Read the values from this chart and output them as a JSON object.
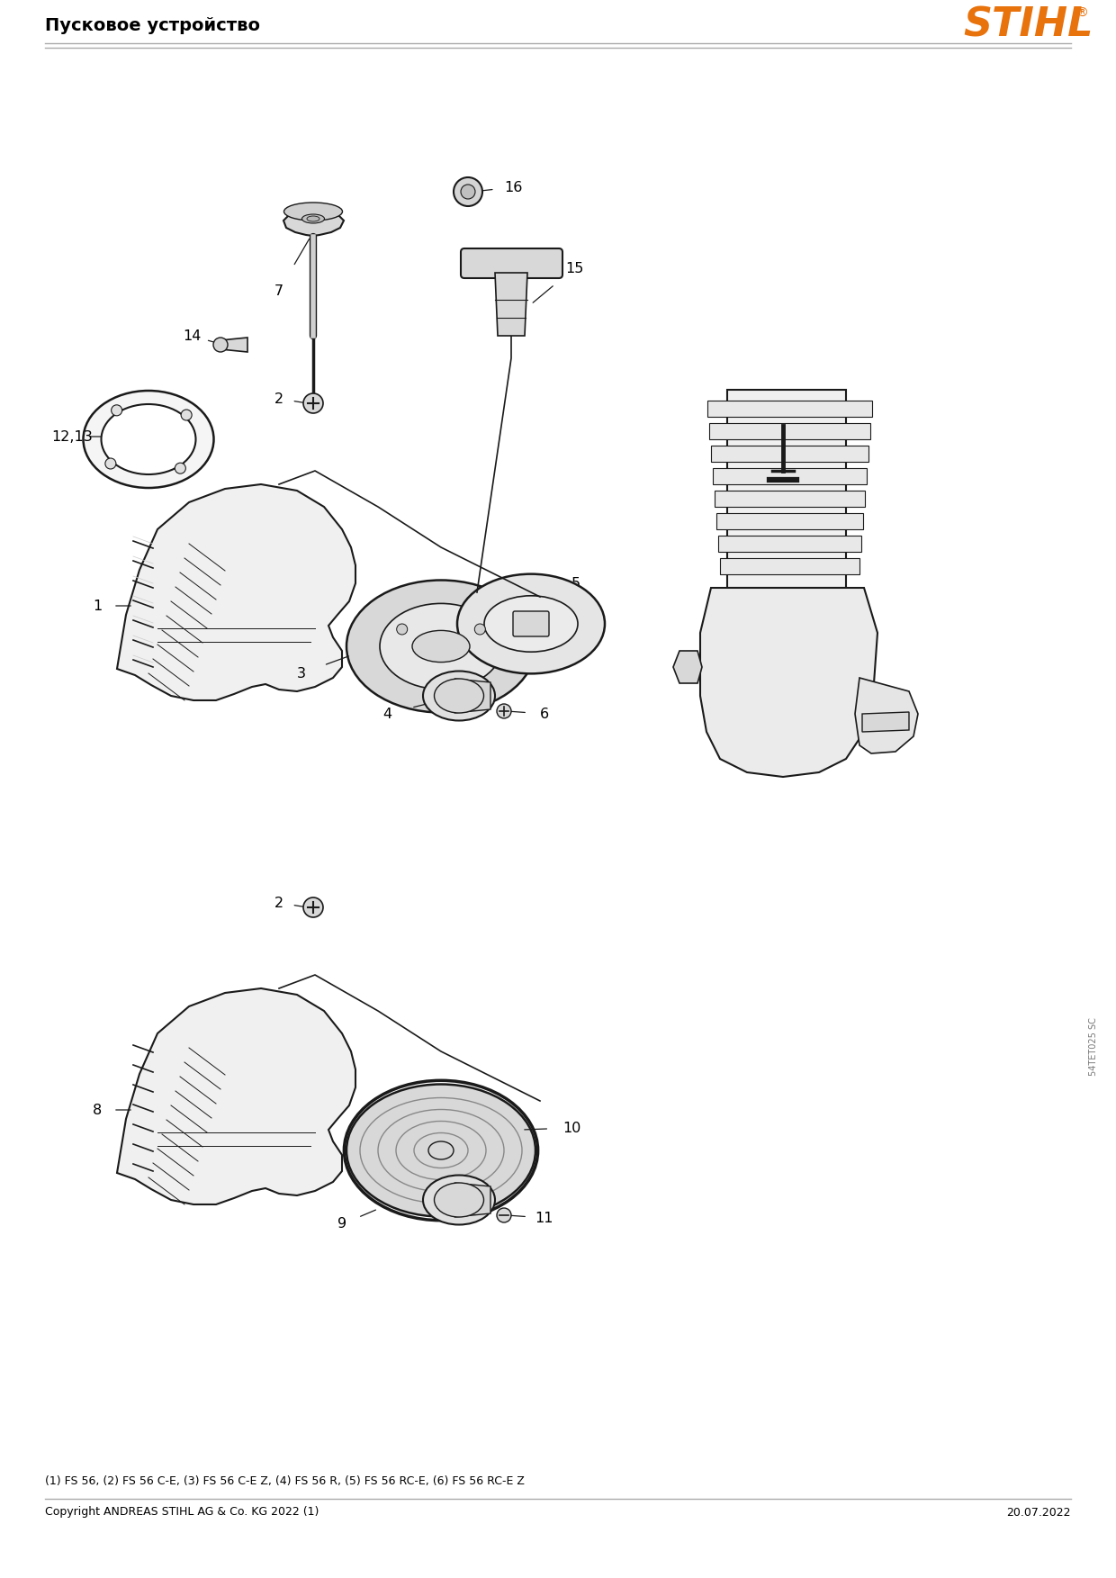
{
  "title": "Пусковое устройство",
  "stihl_color": "#E8720C",
  "background_color": "#FFFFFF",
  "footer_left": "Copyright ANDREAS STIHL AG & Co. KG 2022 (1)",
  "footer_right": "20.07.2022",
  "footnote": "(1) FS 56, (2) FS 56 C-E, (3) FS 56 C-E Z, (4) FS 56 R, (5) FS 56 RC-E, (6) FS 56 RC-E Z",
  "watermark": "54TET025 SC",
  "line_color": "#1A1A1A",
  "fill_light": "#F0F0F0",
  "fill_mid": "#D8D8D8",
  "fill_dark": "#B0B0B0"
}
